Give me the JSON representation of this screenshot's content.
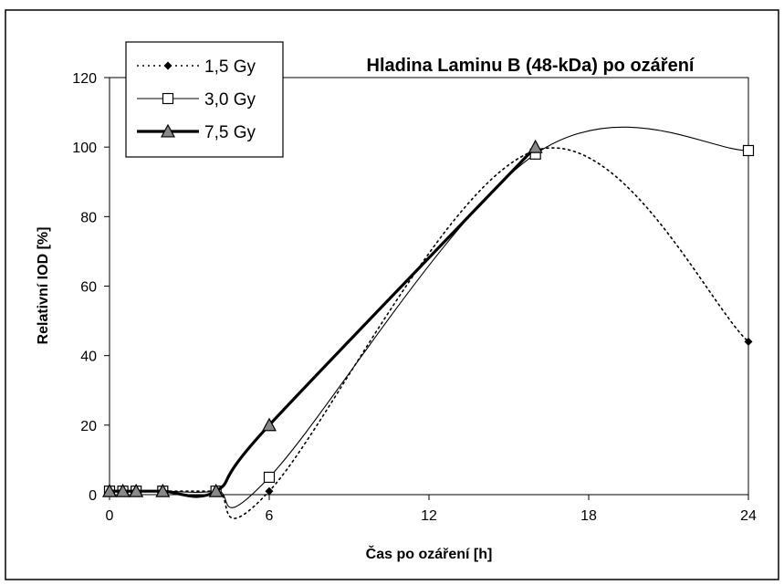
{
  "chart_data": {
    "type": "line",
    "title": "Hladina Laminu B (48-kDa) po ozáření",
    "xlabel": "Čas po ozáření [h]",
    "ylabel": "Relativní IOD [%]",
    "xlim": [
      0,
      24
    ],
    "ylim": [
      0,
      120
    ],
    "xticks": [
      0,
      6,
      12,
      18,
      24
    ],
    "yticks": [
      0,
      20,
      40,
      60,
      80,
      100,
      120
    ],
    "xtick_labels": [
      "0",
      "6",
      "12",
      "18",
      "24"
    ],
    "ytick_labels": [
      "0",
      "20",
      "40",
      "60",
      "80",
      "100",
      "120"
    ],
    "grid": false,
    "legend_position": "top-left",
    "series": [
      {
        "name": "1,5 Gy",
        "style": "dotted",
        "marker": "diamond",
        "x": [
          0,
          0.5,
          1,
          2,
          4,
          6,
          16,
          24
        ],
        "y": [
          1,
          1,
          1,
          1,
          1,
          1,
          99,
          44
        ]
      },
      {
        "name": "3,0 Gy",
        "style": "thin",
        "marker": "square",
        "x": [
          0,
          0.5,
          1,
          2,
          4,
          6,
          16,
          24
        ],
        "y": [
          1,
          1,
          1,
          1,
          1,
          5,
          98,
          99
        ]
      },
      {
        "name": "7,5 Gy",
        "style": "thick",
        "marker": "triangle",
        "x": [
          0,
          0.5,
          1,
          2,
          4,
          6,
          16
        ],
        "y": [
          1,
          1,
          1,
          1,
          1,
          20,
          100
        ]
      }
    ]
  }
}
